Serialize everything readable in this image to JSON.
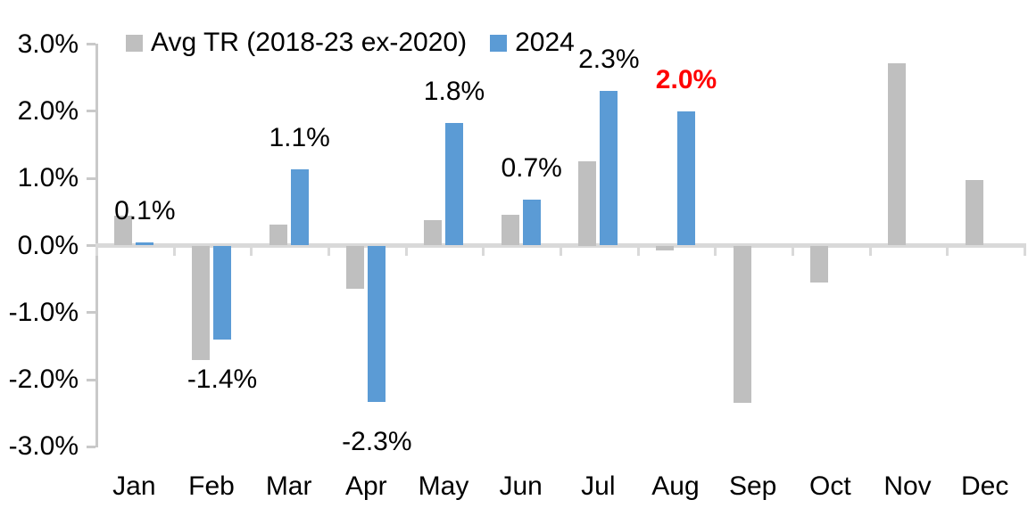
{
  "chart_data": {
    "type": "bar",
    "title": "",
    "categories": [
      "Jan",
      "Feb",
      "Mar",
      "Apr",
      "May",
      "Jun",
      "Jul",
      "Aug",
      "Sep",
      "Oct",
      "Nov",
      "Dec"
    ],
    "series": [
      {
        "name": "Avg TR (2018-23 ex-2020)",
        "color": "#BFBFBF",
        "values": [
          0.45,
          -1.7,
          0.31,
          -0.65,
          0.38,
          0.46,
          1.25,
          -0.07,
          -2.35,
          -0.55,
          2.72,
          0.97
        ]
      },
      {
        "name": "2024",
        "color": "#5B9BD5",
        "values": [
          0.05,
          -1.4,
          1.13,
          -2.33,
          1.82,
          0.69,
          2.31,
          2.0,
          null,
          null,
          null,
          null
        ]
      }
    ],
    "data_labels": [
      {
        "month_index": 0,
        "text": "0.1%",
        "color": "#000000",
        "bold": false
      },
      {
        "month_index": 1,
        "text": "-1.4%",
        "color": "#000000",
        "bold": false
      },
      {
        "month_index": 2,
        "text": "1.1%",
        "color": "#000000",
        "bold": false
      },
      {
        "month_index": 3,
        "text": "-2.3%",
        "color": "#000000",
        "bold": false
      },
      {
        "month_index": 4,
        "text": "1.8%",
        "color": "#000000",
        "bold": false
      },
      {
        "month_index": 5,
        "text": "0.7%",
        "color": "#000000",
        "bold": false
      },
      {
        "month_index": 6,
        "text": "2.3%",
        "color": "#000000",
        "bold": false
      },
      {
        "month_index": 7,
        "text": "2.0%",
        "color": "#FF0000",
        "bold": true
      }
    ],
    "y_axis": {
      "tick_labels": [
        "3.0%",
        "2.0%",
        "1.0%",
        "0.0%",
        "-1.0%",
        "-2.0%",
        "-3.0%"
      ],
      "tick_values": [
        3,
        2,
        1,
        0,
        -1,
        -2,
        -3
      ],
      "min": -3,
      "max": 3
    },
    "legend": {
      "position": "top",
      "entries": [
        {
          "label": "Avg TR (2018-23 ex-2020)",
          "color": "#BFBFBF"
        },
        {
          "label": "2024",
          "color": "#5B9BD5"
        }
      ]
    },
    "axis_line_color": "#D9D9D9",
    "tick_color": "#C9C9C9",
    "grid": false,
    "xlabel": "",
    "ylabel": ""
  }
}
